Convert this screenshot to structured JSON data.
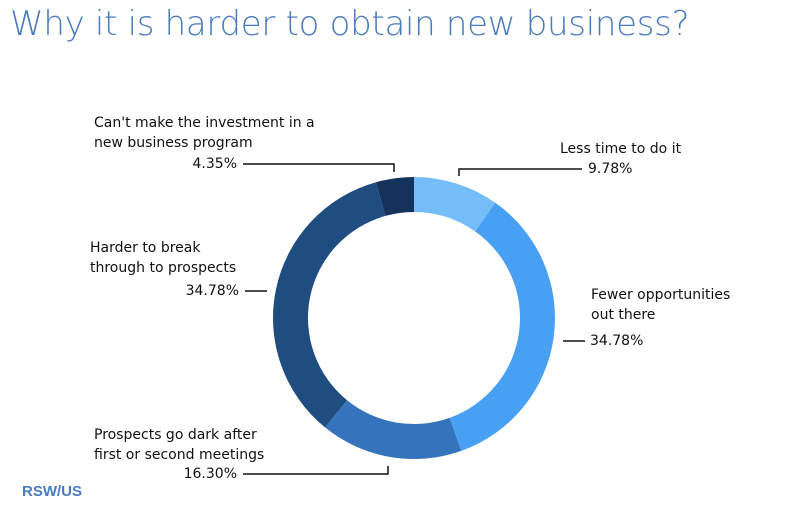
{
  "title": "Why it is harder to obtain new business?",
  "logo": "RSW/US",
  "chart_data": {
    "type": "pie",
    "donut": true,
    "title": "Why it is harder to obtain new business?",
    "slices": [
      {
        "label_lines": [
          "Less time to do it"
        ],
        "value": 9.78,
        "value_label": "9.78%",
        "color": "#74bdf8"
      },
      {
        "label_lines": [
          "Fewer opportunities",
          "out there"
        ],
        "value": 34.78,
        "value_label": "34.78%",
        "color": "#47a0f4"
      },
      {
        "label_lines": [
          "Prospects go dark after",
          "first or second meetings"
        ],
        "value": 16.3,
        "value_label": "16.30%",
        "color": "#3574bd"
      },
      {
        "label_lines": [
          "Harder to break",
          "through to prospects"
        ],
        "value": 34.78,
        "value_label": "34.78%",
        "color": "#1f4d80"
      },
      {
        "label_lines": [
          "Can't make the investment in a",
          "new business program"
        ],
        "value": 4.35,
        "value_label": "4.35%",
        "color": "#14325b"
      }
    ]
  }
}
